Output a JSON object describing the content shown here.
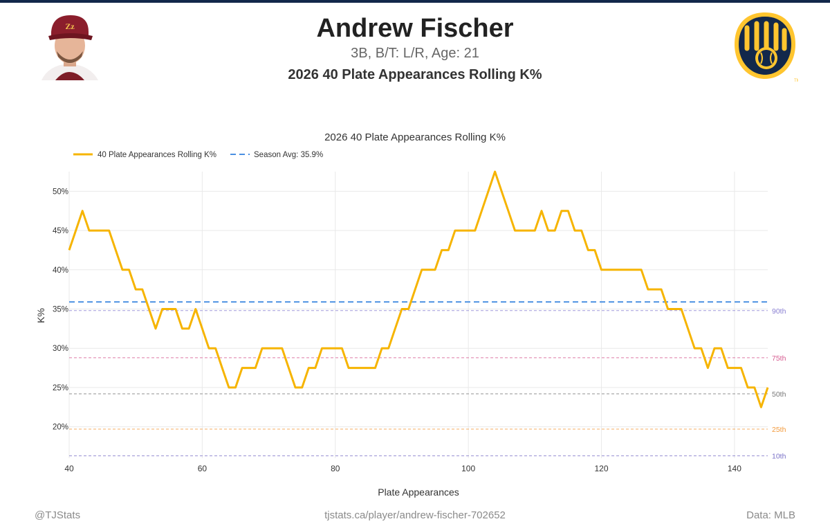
{
  "header": {
    "player_name": "Andrew Fischer",
    "player_info": "3B, B/T: L/R, Age: 21",
    "title": "2026 40 Plate Appearances Rolling K%"
  },
  "footer": {
    "left": "@TJStats",
    "center": "tjstats.ca/player/andrew-fischer-702652",
    "right": "Data: MLB"
  },
  "colors": {
    "line": "#f6b400",
    "season_avg": "#4a90e2",
    "team_navy": "#12284b",
    "team_gold": "#ffc52f",
    "p10": "#7b72c8",
    "p25": "#f39a3c",
    "p50": "#777777",
    "p75": "#d65a8f",
    "p90": "#8a80d2"
  },
  "chart_data": {
    "type": "line",
    "title": "2026 40 Plate Appearances Rolling K%",
    "xlabel": "Plate Appearances",
    "ylabel": "K%",
    "xlim": [
      40,
      145
    ],
    "ylim": [
      16,
      52.5
    ],
    "x_ticks": [
      40,
      60,
      80,
      100,
      120,
      140
    ],
    "y_ticks": [
      20,
      25,
      30,
      35,
      40,
      45,
      50
    ],
    "y_tick_suffix": "%",
    "grid": true,
    "legend_position": "top-left",
    "legend": [
      {
        "label": "40 Plate Appearances Rolling K%",
        "style": "solid"
      },
      {
        "label": "Season Avg: 35.9%",
        "style": "dashed"
      }
    ],
    "season_avg": 35.9,
    "percentiles": [
      {
        "label": "90th",
        "value": 34.8,
        "color": "#8a80d2"
      },
      {
        "label": "75th",
        "value": 28.8,
        "color": "#d65a8f"
      },
      {
        "label": "50th",
        "value": 24.2,
        "color": "#777777"
      },
      {
        "label": "25th",
        "value": 19.7,
        "color": "#f39a3c"
      },
      {
        "label": "10th",
        "value": 16.3,
        "color": "#7b72c8"
      }
    ],
    "series": [
      {
        "name": "40 Plate Appearances Rolling K%",
        "x": [
          40,
          41,
          42,
          43,
          44,
          45,
          46,
          47,
          48,
          49,
          50,
          51,
          52,
          53,
          54,
          55,
          56,
          57,
          58,
          59,
          60,
          61,
          62,
          63,
          64,
          65,
          66,
          67,
          68,
          69,
          70,
          71,
          72,
          73,
          74,
          75,
          76,
          77,
          78,
          79,
          80,
          81,
          82,
          83,
          84,
          85,
          86,
          87,
          88,
          89,
          90,
          91,
          92,
          93,
          94,
          95,
          96,
          97,
          98,
          99,
          100,
          101,
          102,
          103,
          104,
          105,
          106,
          107,
          108,
          109,
          110,
          111,
          112,
          113,
          114,
          115,
          116,
          117,
          118,
          119,
          120,
          121,
          122,
          123,
          124,
          125,
          126,
          127,
          128,
          129,
          130,
          131,
          132,
          133,
          134,
          135,
          136,
          137,
          138,
          139,
          140,
          141,
          142,
          143,
          144,
          145
        ],
        "y": [
          42.5,
          45,
          47.5,
          45,
          45,
          45,
          45,
          42.5,
          40,
          40,
          37.5,
          37.5,
          35,
          32.5,
          35,
          35,
          35,
          32.5,
          32.5,
          35,
          32.5,
          30,
          30,
          27.5,
          25,
          25,
          27.5,
          27.5,
          27.5,
          30,
          30,
          30,
          30,
          27.5,
          25,
          25,
          27.5,
          27.5,
          30,
          30,
          30,
          30,
          27.5,
          27.5,
          27.5,
          27.5,
          27.5,
          30,
          30,
          32.5,
          35,
          35,
          37.5,
          40,
          40,
          40,
          42.5,
          42.5,
          45,
          45,
          45,
          45,
          47.5,
          50,
          52.5,
          50,
          47.5,
          45,
          45,
          45,
          45,
          47.5,
          45,
          45,
          47.5,
          47.5,
          45,
          45,
          42.5,
          42.5,
          40,
          40,
          40,
          40,
          40,
          40,
          40,
          37.5,
          37.5,
          37.5,
          35,
          35,
          35,
          32.5,
          30,
          30,
          27.5,
          30,
          30,
          27.5,
          27.5,
          27.5,
          25,
          25,
          22.5,
          25
        ]
      }
    ]
  }
}
